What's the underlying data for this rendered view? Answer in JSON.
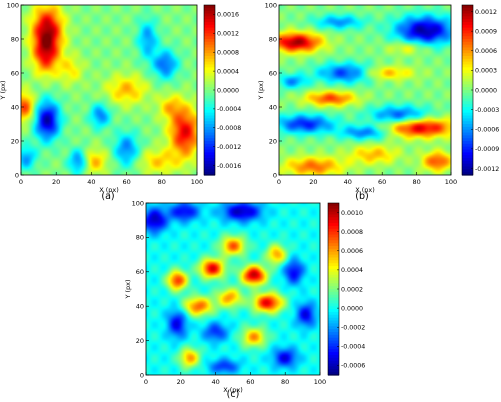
{
  "chart_data": [
    {
      "type": "heatmap",
      "panel_label": "(a)",
      "xlabel": "X (px)",
      "ylabel": "Y (px)",
      "xlim": [
        0,
        100
      ],
      "ylim": [
        0,
        100
      ],
      "xticks": [
        "0",
        "20",
        "40",
        "60",
        "80",
        "100"
      ],
      "yticks": [
        "0",
        "20",
        "40",
        "60",
        "80",
        "100"
      ],
      "colorbar_ticks": [
        "0.0016",
        "0.0012",
        "0.0008",
        "0.0004",
        "0.0000",
        "-0.0004",
        "-0.0008",
        "-0.0012",
        "-0.0016"
      ],
      "colorbar_range": [
        -0.0018,
        0.0018
      ],
      "colormap": "jet",
      "features": [
        {
          "x": 15,
          "y": 85,
          "sx": 6,
          "sy": 10,
          "v": 0.0016
        },
        {
          "x": 14,
          "y": 70,
          "sx": 5,
          "sy": 8,
          "v": 0.001
        },
        {
          "x": 93,
          "y": 25,
          "sx": 6,
          "sy": 10,
          "v": 0.0014
        },
        {
          "x": 60,
          "y": 50,
          "sx": 8,
          "sy": 6,
          "v": 0.0007
        },
        {
          "x": 2,
          "y": 40,
          "sx": 4,
          "sy": 6,
          "v": 0.0011
        },
        {
          "x": 40,
          "y": 8,
          "sx": 6,
          "sy": 5,
          "v": 0.0008
        },
        {
          "x": 78,
          "y": 8,
          "sx": 8,
          "sy": 5,
          "v": 0.0006
        },
        {
          "x": 85,
          "y": 40,
          "sx": 5,
          "sy": 5,
          "v": 0.0006
        },
        {
          "x": 28,
          "y": 62,
          "sx": 5,
          "sy": 6,
          "v": 0.0005
        },
        {
          "x": 15,
          "y": 32,
          "sx": 5,
          "sy": 8,
          "v": -0.0016
        },
        {
          "x": 33,
          "y": 8,
          "sx": 4,
          "sy": 5,
          "v": -0.0012
        },
        {
          "x": 60,
          "y": 15,
          "sx": 5,
          "sy": 7,
          "v": -0.0009
        },
        {
          "x": 82,
          "y": 65,
          "sx": 5,
          "sy": 6,
          "v": -0.001
        },
        {
          "x": 72,
          "y": 80,
          "sx": 4,
          "sy": 8,
          "v": -0.0008
        },
        {
          "x": 45,
          "y": 35,
          "sx": 4,
          "sy": 5,
          "v": -0.0009
        },
        {
          "x": 3,
          "y": 10,
          "sx": 4,
          "sy": 5,
          "v": -0.0008
        }
      ]
    },
    {
      "type": "heatmap",
      "panel_label": "(b)",
      "xlabel": "X (px)",
      "ylabel": "Y (px)",
      "xlim": [
        0,
        100
      ],
      "ylim": [
        0,
        100
      ],
      "xticks": [
        "0",
        "20",
        "40",
        "60",
        "80",
        "100"
      ],
      "yticks": [
        "0",
        "20",
        "40",
        "60",
        "80",
        "100"
      ],
      "colorbar_ticks": [
        "0.0012",
        "0.0009",
        "0.0006",
        "0.0003",
        "0.0000",
        "-0.0003",
        "-0.0006",
        "-0.0009",
        "-0.0012"
      ],
      "colorbar_range": [
        -0.0013,
        0.0013
      ],
      "colormap": "jet",
      "features": [
        {
          "x": 10,
          "y": 78,
          "sx": 10,
          "sy": 4,
          "v": 0.0012
        },
        {
          "x": 82,
          "y": 28,
          "sx": 14,
          "sy": 4,
          "v": 0.0011
        },
        {
          "x": 30,
          "y": 45,
          "sx": 10,
          "sy": 3,
          "v": 0.0008
        },
        {
          "x": 60,
          "y": 60,
          "sx": 12,
          "sy": 3,
          "v": 0.0006
        },
        {
          "x": 20,
          "y": 5,
          "sx": 12,
          "sy": 4,
          "v": 0.0007
        },
        {
          "x": 55,
          "y": 12,
          "sx": 10,
          "sy": 4,
          "v": 0.0005
        },
        {
          "x": 92,
          "y": 8,
          "sx": 6,
          "sy": 4,
          "v": 0.0008
        },
        {
          "x": 75,
          "y": 75,
          "sx": 8,
          "sy": 3,
          "v": 0.0004
        },
        {
          "x": 85,
          "y": 85,
          "sx": 12,
          "sy": 6,
          "v": -0.0012
        },
        {
          "x": 40,
          "y": 60,
          "sx": 12,
          "sy": 4,
          "v": -0.0009
        },
        {
          "x": 15,
          "y": 30,
          "sx": 12,
          "sy": 4,
          "v": -0.0009
        },
        {
          "x": 70,
          "y": 35,
          "sx": 12,
          "sy": 4,
          "v": -0.0008
        },
        {
          "x": 35,
          "y": 90,
          "sx": 10,
          "sy": 3,
          "v": -0.0006
        },
        {
          "x": 50,
          "y": 25,
          "sx": 10,
          "sy": 3,
          "v": -0.0007
        },
        {
          "x": 8,
          "y": 55,
          "sx": 6,
          "sy": 3,
          "v": -0.0006
        }
      ]
    },
    {
      "type": "heatmap",
      "panel_label": "(c)",
      "xlabel": "X (px)",
      "ylabel": "Y (px)",
      "xlim": [
        0,
        100
      ],
      "ylim": [
        0,
        100
      ],
      "xticks": [
        "0",
        "20",
        "40",
        "60",
        "80",
        "100"
      ],
      "yticks": [
        "0",
        "20",
        "40",
        "60",
        "80",
        "100"
      ],
      "colorbar_ticks": [
        "0.0010",
        "0.0008",
        "0.0006",
        "0.0004",
        "0.0002",
        "0.0000",
        "-0.0002",
        "-0.0004",
        "-0.0006"
      ],
      "colorbar_range": [
        -0.0007,
        0.0011
      ],
      "colormap": "jet",
      "features": [
        {
          "x": 62,
          "y": 58,
          "sx": 5,
          "sy": 4,
          "v": 0.001
        },
        {
          "x": 70,
          "y": 42,
          "sx": 6,
          "sy": 4,
          "v": 0.0009
        },
        {
          "x": 38,
          "y": 62,
          "sx": 5,
          "sy": 4,
          "v": 0.0009
        },
        {
          "x": 18,
          "y": 55,
          "sx": 4,
          "sy": 4,
          "v": 0.0008
        },
        {
          "x": 30,
          "y": 40,
          "sx": 6,
          "sy": 4,
          "v": 0.0007
        },
        {
          "x": 50,
          "y": 75,
          "sx": 5,
          "sy": 4,
          "v": 0.0007
        },
        {
          "x": 48,
          "y": 45,
          "sx": 5,
          "sy": 4,
          "v": 0.0006
        },
        {
          "x": 75,
          "y": 70,
          "sx": 4,
          "sy": 4,
          "v": 0.0006
        },
        {
          "x": 25,
          "y": 10,
          "sx": 4,
          "sy": 4,
          "v": 0.0006
        },
        {
          "x": 62,
          "y": 22,
          "sx": 5,
          "sy": 4,
          "v": 0.0006
        },
        {
          "x": 5,
          "y": 90,
          "sx": 5,
          "sy": 5,
          "v": -0.0006
        },
        {
          "x": 55,
          "y": 95,
          "sx": 8,
          "sy": 4,
          "v": -0.0006
        },
        {
          "x": 22,
          "y": 95,
          "sx": 6,
          "sy": 4,
          "v": -0.0005
        },
        {
          "x": 85,
          "y": 60,
          "sx": 4,
          "sy": 5,
          "v": -0.0005
        },
        {
          "x": 18,
          "y": 30,
          "sx": 4,
          "sy": 6,
          "v": -0.0005
        },
        {
          "x": 92,
          "y": 35,
          "sx": 4,
          "sy": 5,
          "v": -0.0005
        },
        {
          "x": 40,
          "y": 25,
          "sx": 5,
          "sy": 4,
          "v": -0.0004
        },
        {
          "x": 45,
          "y": 5,
          "sx": 6,
          "sy": 3,
          "v": -0.0004
        },
        {
          "x": 80,
          "y": 10,
          "sx": 5,
          "sy": 4,
          "v": -0.0005
        }
      ]
    }
  ]
}
